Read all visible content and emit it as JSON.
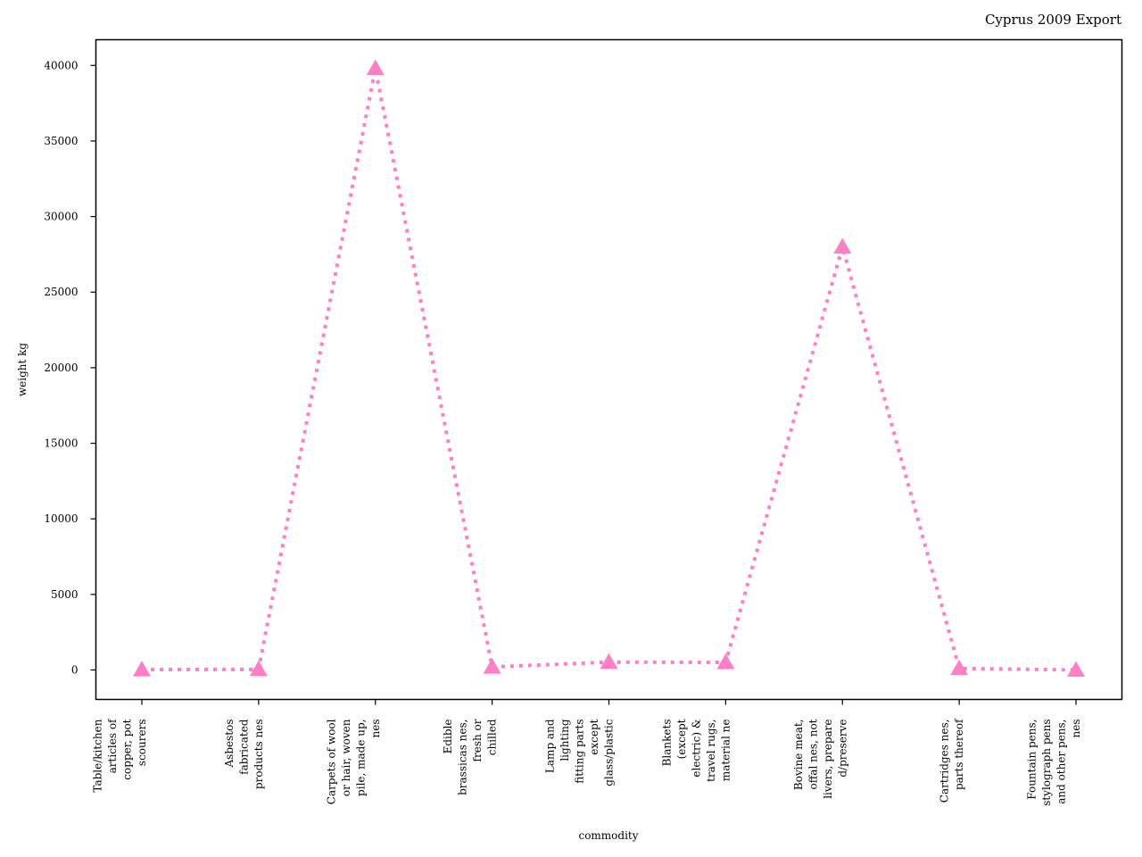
{
  "chart_data": {
    "type": "line",
    "title": "Cyprus 2009 Export",
    "xlabel": "commodity",
    "ylabel": "weight kg",
    "categories": [
      [
        "Table/kitchen",
        "articles of",
        "copper, pot",
        "scourers"
      ],
      [
        "Asbestos",
        "fabricated",
        "products nes"
      ],
      [
        "Carpets of wool",
        "or hair, woven",
        "pile, made up,",
        "nes"
      ],
      [
        "Edible",
        "brassicas nes,",
        "fresh or",
        "chilled"
      ],
      [
        "Lamp and",
        "lighting",
        "fitting parts",
        "except",
        "glass/plastic"
      ],
      [
        "Blankets",
        "(except",
        "electric) &",
        "travel rugs,",
        "material ne"
      ],
      [
        "Bovine meat,",
        "offal nes, not",
        "livers, prepare",
        "d/preserve"
      ],
      [
        "Cartridges nes,",
        "parts thereof"
      ],
      [
        "Fountain pens,",
        "stylograph pens",
        "and other pens,",
        "nes"
      ]
    ],
    "series": [
      {
        "values": [
          20,
          40,
          39800,
          200,
          520,
          500,
          28000,
          100,
          0
        ],
        "color": "#ff7fc6",
        "line_style": "dotted",
        "marker": "triangle-up"
      }
    ],
    "yticks": [
      0,
      5000,
      10000,
      15000,
      20000,
      25000,
      30000,
      35000,
      40000
    ],
    "ylim": [
      -1950,
      41700
    ],
    "grid": false
  }
}
